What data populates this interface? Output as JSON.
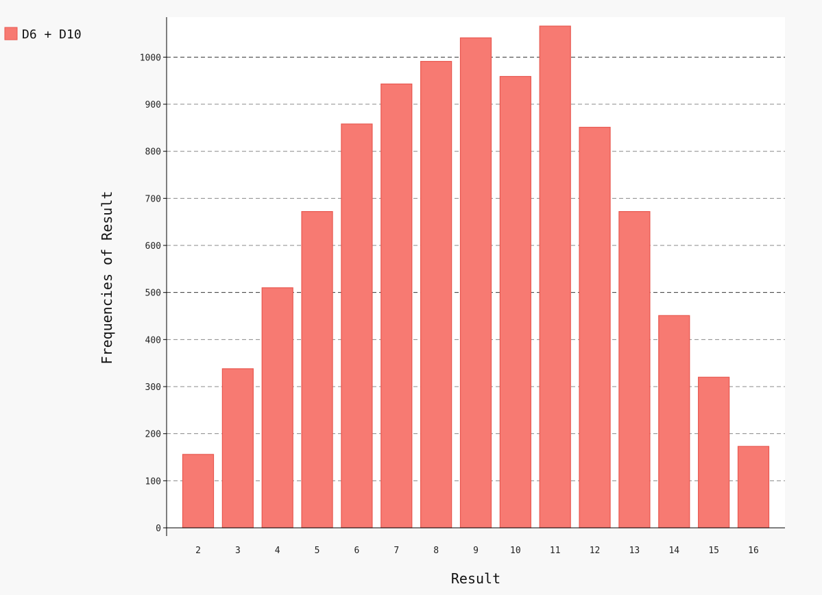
{
  "chart_data": {
    "type": "bar",
    "title": "",
    "xlabel": "Result",
    "ylabel": "Frequencies of Result",
    "categories": [
      "2",
      "3",
      "4",
      "5",
      "6",
      "7",
      "8",
      "9",
      "10",
      "11",
      "12",
      "13",
      "14",
      "15",
      "16"
    ],
    "series": [
      {
        "name": "D6 + D10",
        "values": [
          156,
          338,
          510,
          672,
          858,
          943,
          991,
          1041,
          959,
          1066,
          851,
          672,
          451,
          320,
          173
        ],
        "color": "#f77a72",
        "stroke": "#e8574f"
      }
    ],
    "ylim": [
      0,
      1085
    ],
    "yticks": [
      0,
      100,
      200,
      300,
      400,
      500,
      600,
      700,
      800,
      900,
      1000
    ],
    "major_gridlines": [
      500,
      1000
    ],
    "grid": true,
    "legend_position": "top-left",
    "plot_background": "#ffffff",
    "page_background": "#f8f8f8"
  }
}
